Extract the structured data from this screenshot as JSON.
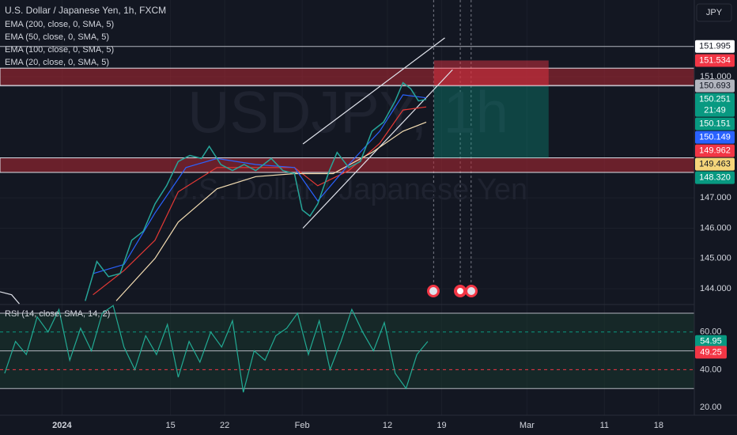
{
  "header": {
    "symbol_title": "U.S. Dollar / Japanese Yen, 1h, FXCM",
    "watermark_symbol": "USDJPY, 1h",
    "watermark_name": "U.S. Dollar / Japanese Yen",
    "currency_button": "JPY"
  },
  "chart_data": [
    {
      "type": "line",
      "xlim": [
        -8,
        81.6
      ],
      "ylim": [
        143.48,
        153.53
      ],
      "grid": true,
      "xticks": [
        {
          "value": 0,
          "label": "2024"
        },
        {
          "value": 14,
          "label": "15"
        },
        {
          "value": 21,
          "label": "22"
        },
        {
          "value": 31,
          "label": "Feb"
        },
        {
          "value": 42,
          "label": "12"
        },
        {
          "value": 49,
          "label": "19"
        },
        {
          "value": 60,
          "label": "Mar"
        },
        {
          "value": 70,
          "label": "11"
        },
        {
          "value": 77,
          "label": "18"
        }
      ],
      "yticks": [
        {
          "value": 151,
          "label": "151.000"
        },
        {
          "value": 147,
          "label": "147.000"
        },
        {
          "value": 146,
          "label": "146.000"
        },
        {
          "value": 145,
          "label": "145.000"
        },
        {
          "value": 144,
          "label": "144.000"
        }
      ],
      "price": {
        "color": "#26a69a",
        "x": [
          3,
          4.5,
          6,
          7.5,
          9,
          10.5,
          12,
          13.5,
          15,
          16.5,
          18,
          19,
          20.5,
          22,
          23.5,
          25,
          27,
          28.5,
          30,
          31,
          32,
          33,
          34.5,
          35.5,
          37,
          38.5,
          40,
          41.5,
          43,
          44,
          45,
          46,
          47
        ],
        "values": [
          143.6,
          144.9,
          144.4,
          144.5,
          145.6,
          145.9,
          146.8,
          147.4,
          148.2,
          148.4,
          148.3,
          148.7,
          148.1,
          147.9,
          148.1,
          147.9,
          148.3,
          147.9,
          147.8,
          146.6,
          146.4,
          146.8,
          147.9,
          148.5,
          148.0,
          148.2,
          149.2,
          149.5,
          150.2,
          150.8,
          150.6,
          150.2,
          150.25
        ]
      },
      "series": [
        {
          "name": "EMA (200, close, 0, SMA, 5)",
          "color": "#e0e3eb",
          "x": [
            -8,
            -6.5,
            -5.5
          ],
          "values": [
            143.9,
            143.8,
            143.5
          ]
        },
        {
          "name": "EMA (50, close, 0, SMA, 5)",
          "color": "#e53935",
          "x": [
            4,
            8,
            12,
            15,
            20,
            25,
            30,
            33,
            37,
            41,
            44,
            47
          ],
          "values": [
            143.8,
            144.6,
            145.6,
            147.2,
            148.0,
            148.0,
            148.0,
            147.4,
            147.9,
            148.8,
            149.9,
            150.0
          ]
        },
        {
          "name": "EMA (100, close, 0, SMA, 5)",
          "color": "#f5deb3",
          "x": [
            7,
            12,
            15,
            20,
            25,
            30,
            35,
            40,
            44,
            47
          ],
          "values": [
            143.6,
            145.0,
            146.2,
            147.3,
            147.7,
            147.8,
            147.8,
            148.5,
            149.2,
            149.5
          ]
        },
        {
          "name": "EMA (20, close, 0, SMA, 5)",
          "color": "#2962ff",
          "x": [
            4,
            8,
            12,
            16,
            20,
            25,
            30,
            33,
            37,
            41,
            44,
            47
          ],
          "values": [
            144.5,
            144.8,
            146.5,
            148.0,
            148.3,
            148.1,
            148.0,
            146.9,
            148.1,
            149.2,
            150.4,
            150.3
          ]
        }
      ],
      "zones": [
        {
          "from": 151.28,
          "to": 150.71,
          "color": "#b22833"
        },
        {
          "from": 148.32,
          "to": 147.84,
          "color": "#b22833"
        }
      ],
      "lines": [
        {
          "value": 151.995,
          "color": "#b2b5be"
        },
        {
          "value": 150.693,
          "color": "#b2b5be"
        }
      ],
      "position": {
        "x": [
          48,
          62.8
        ],
        "stop": 151.534,
        "entry": 150.693,
        "target": 148.32
      },
      "channel": [
        {
          "x": [
            31.1,
            49.4
          ],
          "values": [
            148.78,
            152.28
          ]
        },
        {
          "x": [
            31.1,
            50.4
          ],
          "values": [
            146.0,
            151.23
          ]
        }
      ],
      "events": [
        47.96,
        51.4,
        52.8
      ],
      "price_levels": [
        {
          "value": 151.995,
          "bg": "#ffffff",
          "fg": "#131722"
        },
        {
          "value": 151.534,
          "bg": "#f23645",
          "fg": "#ffffff"
        },
        {
          "value": 150.693,
          "bg": "#b2b5be",
          "fg": "#131722"
        },
        {
          "value": 150.251,
          "bg": "#089981",
          "fg": "#ffffff",
          "countdown": "21:49"
        },
        {
          "value": 150.151,
          "bg": "#089981",
          "fg": "#ffffff"
        },
        {
          "value": 150.149,
          "bg": "#2962ff",
          "fg": "#ffffff"
        },
        {
          "value": 149.962,
          "bg": "#f23645",
          "fg": "#ffffff"
        },
        {
          "value": 149.463,
          "bg": "#f5d57a",
          "fg": "#131722"
        },
        {
          "value": 148.32,
          "bg": "#089981",
          "fg": "#ffffff",
          "label": "148.320"
        }
      ]
    },
    {
      "type": "line",
      "title": "RSI (14, close, SMA, 14, 2)",
      "xlim": [
        -8,
        81.6
      ],
      "ylim": [
        15.8,
        74.6
      ],
      "yticks": [
        {
          "value": 60,
          "label": "60.00"
        },
        {
          "value": 40,
          "label": "40.00"
        },
        {
          "value": 20,
          "label": "20.00"
        }
      ],
      "levels": [
        70,
        50,
        30
      ],
      "dashed_levels": [
        {
          "value": 60,
          "color": "#089981"
        },
        {
          "value": 40,
          "color": "#f23645"
        }
      ],
      "series": [
        {
          "color": "#22ab94",
          "x": [
            -7.4,
            -6,
            -4.6,
            -3.2,
            -1.8,
            -0.4,
            1,
            2.4,
            3.8,
            5.2,
            6.6,
            8,
            9.4,
            10.8,
            12.2,
            13.6,
            15,
            16.4,
            17.8,
            19.2,
            20.6,
            22,
            23.4,
            24.8,
            26.2,
            27.6,
            29,
            30.4,
            31.8,
            33.2,
            34.6,
            36,
            37.4,
            38.8,
            40.2,
            41.6,
            43,
            44.4,
            45.8,
            47.2
          ],
          "values": [
            38,
            55,
            48,
            68,
            60,
            72,
            45,
            62,
            50,
            70,
            74,
            52,
            40,
            58,
            48,
            64,
            36,
            55,
            44,
            60,
            52,
            66,
            28,
            50,
            45,
            58,
            62,
            70,
            48,
            66,
            40,
            55,
            72,
            60,
            50,
            65,
            38,
            30,
            48,
            54.95
          ]
        }
      ],
      "last_values": [
        {
          "value": 54.95,
          "bg": "#089981"
        },
        {
          "value": 49.25,
          "bg": "#f23645"
        }
      ]
    }
  ]
}
